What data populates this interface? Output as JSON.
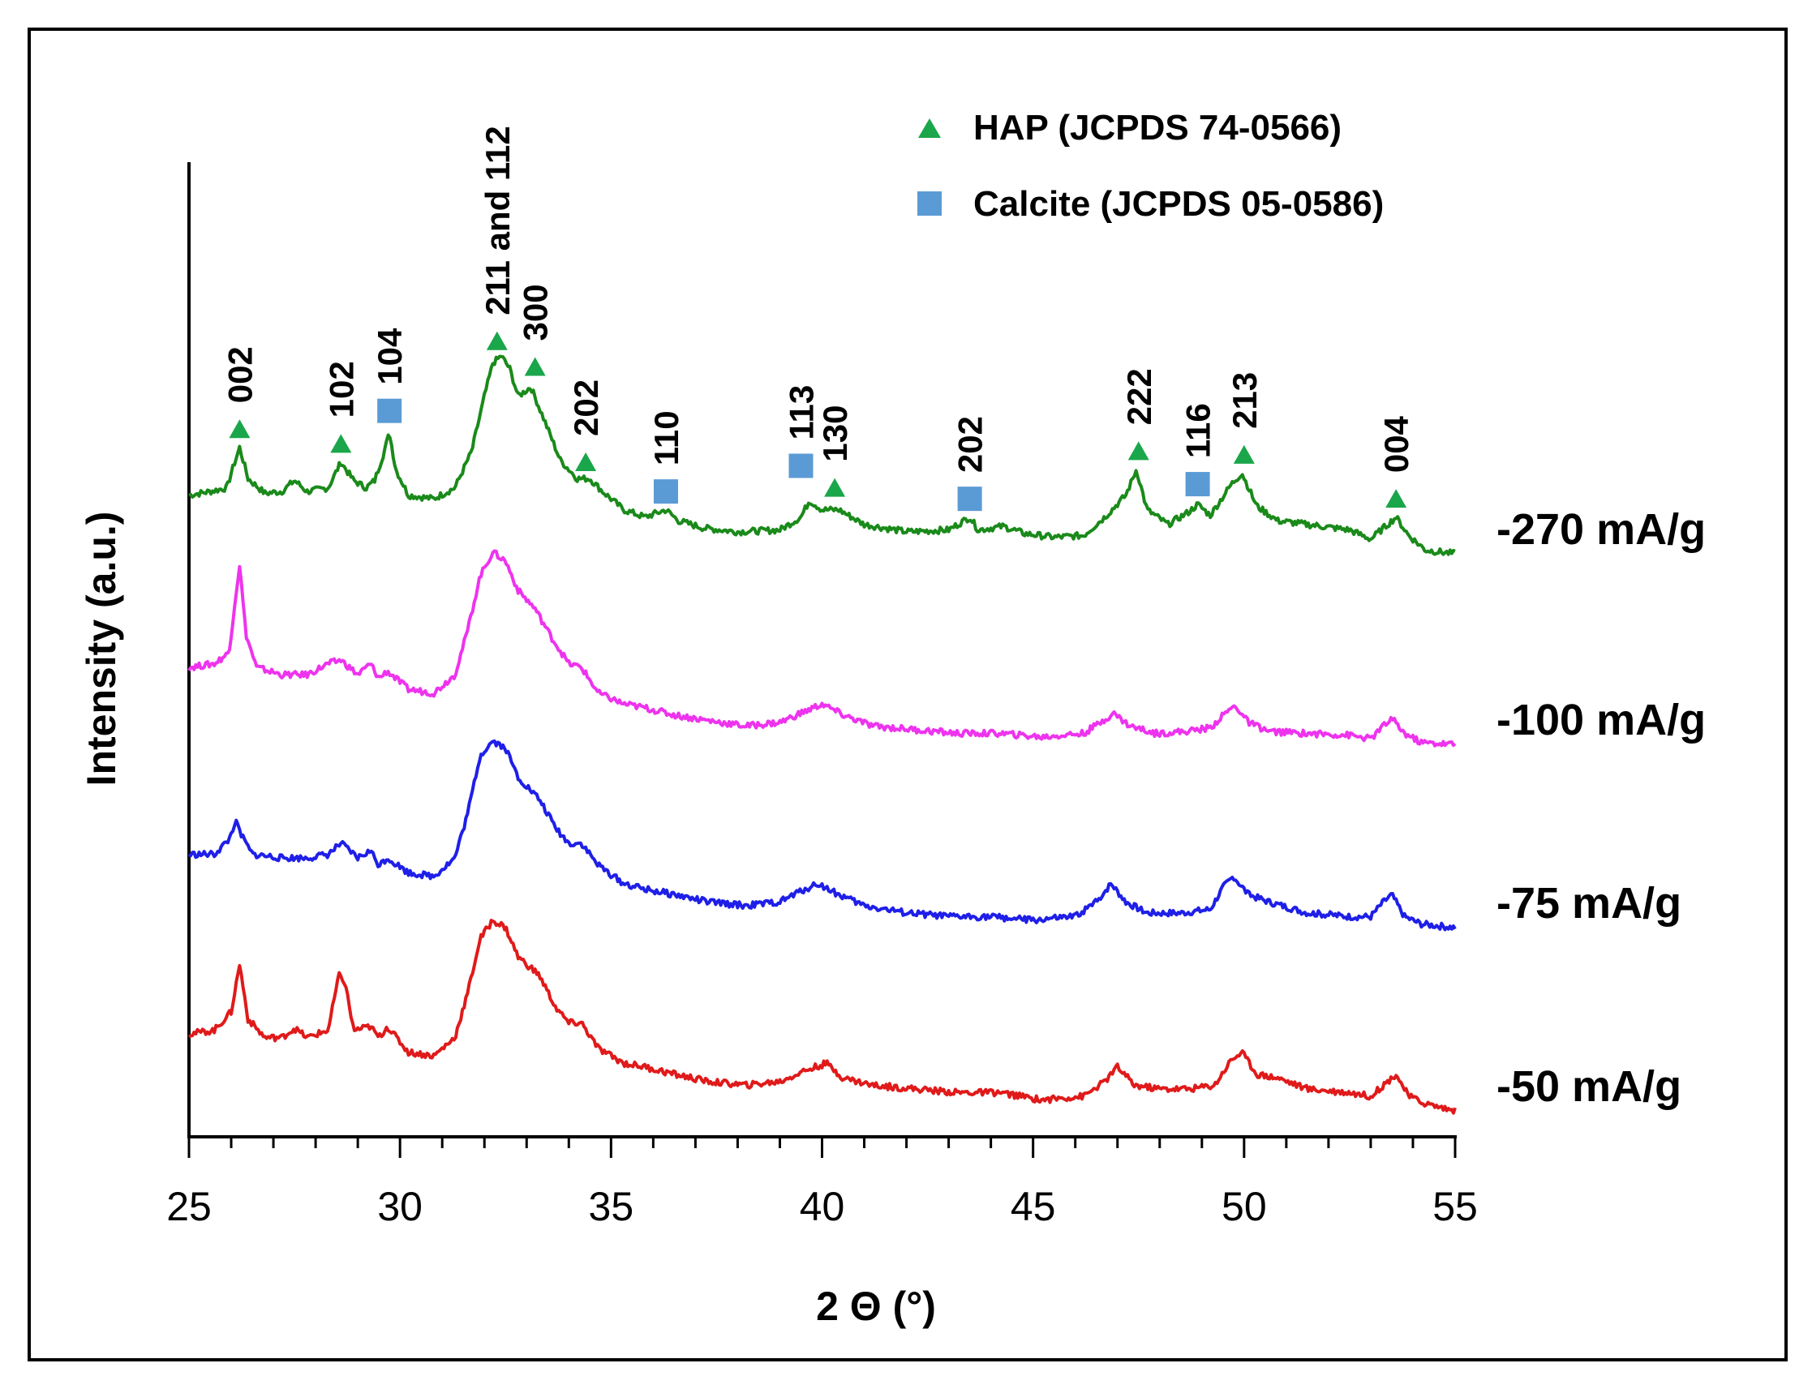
{
  "chart_data": {
    "type": "line",
    "title": "",
    "xlabel": "2 Θ (°)",
    "ylabel": "Intensity (a.u.)",
    "xlim": [
      25,
      55
    ],
    "xticks": [
      "25",
      "30",
      "35",
      "40",
      "45",
      "50",
      "55"
    ],
    "legend": [
      {
        "name": "HAP (JCPDS 74-0566)",
        "marker": "triangle",
        "color": "#1aa64a"
      },
      {
        "name": "Calcite (JCPDS 05-0586)",
        "marker": "square",
        "color": "#5b9bd5"
      }
    ],
    "series": [
      {
        "name": "-270 mA/g",
        "color": "#1a8a1a",
        "offset": 3.0,
        "points": [
          [
            25,
            0.36
          ],
          [
            25.5,
            0.38
          ],
          [
            25.9,
            0.4
          ],
          [
            26.0,
            0.48
          ],
          [
            26.2,
            0.62
          ],
          [
            26.4,
            0.45
          ],
          [
            26.8,
            0.37
          ],
          [
            27.2,
            0.38
          ],
          [
            27.5,
            0.44
          ],
          [
            27.8,
            0.38
          ],
          [
            28.3,
            0.4
          ],
          [
            28.6,
            0.54
          ],
          [
            28.9,
            0.44
          ],
          [
            29.2,
            0.4
          ],
          [
            29.4,
            0.44
          ],
          [
            29.6,
            0.58
          ],
          [
            29.75,
            0.7
          ],
          [
            29.9,
            0.5
          ],
          [
            30.2,
            0.36
          ],
          [
            30.8,
            0.34
          ],
          [
            31.3,
            0.4
          ],
          [
            31.7,
            0.6
          ],
          [
            32.0,
            0.9
          ],
          [
            32.2,
            1.08
          ],
          [
            32.4,
            1.12
          ],
          [
            32.6,
            1.05
          ],
          [
            32.8,
            0.9
          ],
          [
            33.1,
            0.95
          ],
          [
            33.4,
            0.78
          ],
          [
            33.8,
            0.55
          ],
          [
            34.2,
            0.45
          ],
          [
            34.5,
            0.45
          ],
          [
            34.8,
            0.38
          ],
          [
            35.3,
            0.28
          ],
          [
            35.8,
            0.24
          ],
          [
            36.3,
            0.28
          ],
          [
            36.6,
            0.22
          ],
          [
            37.2,
            0.18
          ],
          [
            38.0,
            0.16
          ],
          [
            39.0,
            0.17
          ],
          [
            39.5,
            0.24
          ],
          [
            39.7,
            0.33
          ],
          [
            40.0,
            0.28
          ],
          [
            40.4,
            0.28
          ],
          [
            41.0,
            0.2
          ],
          [
            42.0,
            0.16
          ],
          [
            43.0,
            0.17
          ],
          [
            43.5,
            0.24
          ],
          [
            43.7,
            0.17
          ],
          [
            44.3,
            0.19
          ],
          [
            44.8,
            0.15
          ],
          [
            45.5,
            0.13
          ],
          [
            46.2,
            0.14
          ],
          [
            46.7,
            0.24
          ],
          [
            47.2,
            0.36
          ],
          [
            47.45,
            0.5
          ],
          [
            47.7,
            0.28
          ],
          [
            48.2,
            0.2
          ],
          [
            48.7,
            0.27
          ],
          [
            48.9,
            0.31
          ],
          [
            49.2,
            0.25
          ],
          [
            49.7,
            0.42
          ],
          [
            49.95,
            0.48
          ],
          [
            50.3,
            0.3
          ],
          [
            50.8,
            0.22
          ],
          [
            51.5,
            0.2
          ],
          [
            52.5,
            0.17
          ],
          [
            53.0,
            0.12
          ],
          [
            53.4,
            0.2
          ],
          [
            53.6,
            0.24
          ],
          [
            53.9,
            0.14
          ],
          [
            54.3,
            0.06
          ],
          [
            55,
            0.04
          ]
        ]
      },
      {
        "name": "-100 mA/g",
        "color": "#ee33ee",
        "offset": 2.0,
        "points": [
          [
            25,
            0.42
          ],
          [
            25.6,
            0.44
          ],
          [
            25.95,
            0.5
          ],
          [
            26.1,
            0.8
          ],
          [
            26.2,
            0.98
          ],
          [
            26.35,
            0.6
          ],
          [
            26.6,
            0.42
          ],
          [
            27.2,
            0.38
          ],
          [
            27.8,
            0.38
          ],
          [
            28.3,
            0.44
          ],
          [
            28.6,
            0.46
          ],
          [
            29.0,
            0.38
          ],
          [
            29.3,
            0.44
          ],
          [
            29.5,
            0.36
          ],
          [
            29.7,
            0.4
          ],
          [
            30.2,
            0.3
          ],
          [
            30.8,
            0.28
          ],
          [
            31.3,
            0.38
          ],
          [
            31.6,
            0.62
          ],
          [
            31.9,
            0.92
          ],
          [
            32.2,
            1.05
          ],
          [
            32.5,
            1.0
          ],
          [
            32.8,
            0.84
          ],
          [
            33.2,
            0.74
          ],
          [
            33.6,
            0.58
          ],
          [
            34.0,
            0.44
          ],
          [
            34.3,
            0.42
          ],
          [
            34.7,
            0.28
          ],
          [
            35.3,
            0.22
          ],
          [
            35.8,
            0.2
          ],
          [
            36.5,
            0.16
          ],
          [
            37.3,
            0.13
          ],
          [
            38.2,
            0.1
          ],
          [
            39.0,
            0.12
          ],
          [
            39.5,
            0.17
          ],
          [
            40.0,
            0.22
          ],
          [
            40.5,
            0.16
          ],
          [
            41.2,
            0.1
          ],
          [
            42.2,
            0.08
          ],
          [
            43.2,
            0.06
          ],
          [
            44.2,
            0.06
          ],
          [
            45.2,
            0.04
          ],
          [
            46.2,
            0.06
          ],
          [
            46.6,
            0.12
          ],
          [
            46.9,
            0.17
          ],
          [
            47.3,
            0.1
          ],
          [
            47.9,
            0.06
          ],
          [
            48.6,
            0.07
          ],
          [
            49.2,
            0.09
          ],
          [
            49.6,
            0.18
          ],
          [
            49.8,
            0.21
          ],
          [
            50.1,
            0.12
          ],
          [
            50.6,
            0.07
          ],
          [
            51.5,
            0.06
          ],
          [
            52.5,
            0.05
          ],
          [
            53.0,
            0.03
          ],
          [
            53.3,
            0.1
          ],
          [
            53.5,
            0.14
          ],
          [
            53.8,
            0.06
          ],
          [
            54.2,
            0.01
          ],
          [
            55,
            0.0
          ]
        ]
      },
      {
        "name": "-75 mA/g",
        "color": "#1f1fe8",
        "offset": 1.0,
        "points": [
          [
            25,
            0.4
          ],
          [
            25.6,
            0.4
          ],
          [
            25.95,
            0.48
          ],
          [
            26.1,
            0.58
          ],
          [
            26.25,
            0.5
          ],
          [
            26.5,
            0.4
          ],
          [
            27.2,
            0.38
          ],
          [
            27.8,
            0.38
          ],
          [
            28.3,
            0.4
          ],
          [
            28.6,
            0.46
          ],
          [
            29.0,
            0.38
          ],
          [
            29.3,
            0.42
          ],
          [
            29.5,
            0.34
          ],
          [
            29.7,
            0.38
          ],
          [
            30.2,
            0.3
          ],
          [
            30.8,
            0.28
          ],
          [
            31.3,
            0.38
          ],
          [
            31.6,
            0.62
          ],
          [
            31.9,
            0.94
          ],
          [
            32.2,
            1.02
          ],
          [
            32.5,
            0.98
          ],
          [
            32.8,
            0.82
          ],
          [
            33.3,
            0.7
          ],
          [
            33.7,
            0.54
          ],
          [
            34.0,
            0.46
          ],
          [
            34.3,
            0.46
          ],
          [
            34.7,
            0.34
          ],
          [
            35.3,
            0.24
          ],
          [
            35.8,
            0.21
          ],
          [
            36.5,
            0.18
          ],
          [
            37.3,
            0.14
          ],
          [
            38.2,
            0.12
          ],
          [
            39.0,
            0.14
          ],
          [
            39.5,
            0.2
          ],
          [
            39.9,
            0.24
          ],
          [
            40.4,
            0.18
          ],
          [
            41.0,
            0.12
          ],
          [
            42.0,
            0.08
          ],
          [
            43.0,
            0.06
          ],
          [
            44.0,
            0.06
          ],
          [
            45.0,
            0.04
          ],
          [
            46.0,
            0.06
          ],
          [
            46.5,
            0.14
          ],
          [
            46.85,
            0.24
          ],
          [
            47.2,
            0.14
          ],
          [
            47.7,
            0.08
          ],
          [
            48.5,
            0.08
          ],
          [
            49.2,
            0.1
          ],
          [
            49.5,
            0.22
          ],
          [
            49.75,
            0.28
          ],
          [
            50.1,
            0.18
          ],
          [
            50.6,
            0.14
          ],
          [
            51.5,
            0.08
          ],
          [
            52.5,
            0.06
          ],
          [
            53.0,
            0.06
          ],
          [
            53.3,
            0.14
          ],
          [
            53.5,
            0.18
          ],
          [
            53.8,
            0.06
          ],
          [
            54.2,
            0.02
          ],
          [
            55,
            0.0
          ]
        ]
      },
      {
        "name": "-50 mA/g",
        "color": "#e01a1a",
        "offset": 0.0,
        "points": [
          [
            25,
            0.42
          ],
          [
            25.6,
            0.44
          ],
          [
            26.0,
            0.54
          ],
          [
            26.2,
            0.8
          ],
          [
            26.4,
            0.5
          ],
          [
            26.8,
            0.4
          ],
          [
            27.2,
            0.4
          ],
          [
            27.5,
            0.45
          ],
          [
            27.8,
            0.4
          ],
          [
            28.3,
            0.44
          ],
          [
            28.55,
            0.74
          ],
          [
            28.7,
            0.7
          ],
          [
            28.9,
            0.44
          ],
          [
            29.3,
            0.46
          ],
          [
            29.5,
            0.4
          ],
          [
            29.7,
            0.46
          ],
          [
            30.2,
            0.32
          ],
          [
            30.8,
            0.3
          ],
          [
            31.3,
            0.4
          ],
          [
            31.6,
            0.64
          ],
          [
            31.9,
            0.94
          ],
          [
            32.2,
            1.04
          ],
          [
            32.5,
            1.0
          ],
          [
            32.8,
            0.84
          ],
          [
            33.3,
            0.74
          ],
          [
            33.7,
            0.56
          ],
          [
            34.0,
            0.48
          ],
          [
            34.3,
            0.48
          ],
          [
            34.7,
            0.34
          ],
          [
            35.3,
            0.26
          ],
          [
            35.8,
            0.24
          ],
          [
            36.5,
            0.2
          ],
          [
            37.3,
            0.16
          ],
          [
            38.2,
            0.14
          ],
          [
            39.0,
            0.16
          ],
          [
            39.6,
            0.22
          ],
          [
            40.1,
            0.26
          ],
          [
            40.5,
            0.18
          ],
          [
            41.2,
            0.14
          ],
          [
            42.2,
            0.12
          ],
          [
            43.2,
            0.1
          ],
          [
            44.2,
            0.1
          ],
          [
            45.2,
            0.06
          ],
          [
            46.2,
            0.08
          ],
          [
            46.7,
            0.16
          ],
          [
            47.0,
            0.24
          ],
          [
            47.4,
            0.14
          ],
          [
            48.0,
            0.12
          ],
          [
            48.7,
            0.12
          ],
          [
            49.3,
            0.14
          ],
          [
            49.7,
            0.28
          ],
          [
            49.95,
            0.32
          ],
          [
            50.3,
            0.2
          ],
          [
            50.8,
            0.18
          ],
          [
            51.5,
            0.12
          ],
          [
            52.5,
            0.1
          ],
          [
            53.0,
            0.08
          ],
          [
            53.4,
            0.16
          ],
          [
            53.6,
            0.2
          ],
          [
            53.9,
            0.08
          ],
          [
            54.3,
            0.04
          ],
          [
            55,
            0.0
          ]
        ]
      }
    ],
    "peak_annotations": [
      {
        "label": "002",
        "x": 26.2,
        "phase": "HAP",
        "height": 0.72
      },
      {
        "label": "102",
        "x": 28.6,
        "phase": "HAP",
        "height": 0.64
      },
      {
        "label": "104",
        "x": 29.75,
        "phase": "Calcite",
        "height": 0.82
      },
      {
        "label": "211 and 112",
        "x": 32.3,
        "phase": "HAP",
        "height": 1.2
      },
      {
        "label": "300",
        "x": 33.2,
        "phase": "HAP",
        "height": 1.06
      },
      {
        "label": "202",
        "x": 34.4,
        "phase": "HAP",
        "height": 0.54
      },
      {
        "label": "110",
        "x": 36.3,
        "phase": "Calcite",
        "height": 0.38
      },
      {
        "label": "113",
        "x": 39.5,
        "phase": "Calcite",
        "height": 0.52
      },
      {
        "label": "130",
        "x": 40.3,
        "phase": "HAP",
        "height": 0.4
      },
      {
        "label": "202",
        "x": 43.5,
        "phase": "Calcite",
        "height": 0.34
      },
      {
        "label": "222",
        "x": 47.5,
        "phase": "HAP",
        "height": 0.6
      },
      {
        "label": "116",
        "x": 48.9,
        "phase": "Calcite",
        "height": 0.42
      },
      {
        "label": "213",
        "x": 50.0,
        "phase": "HAP",
        "height": 0.58
      },
      {
        "label": "004",
        "x": 53.6,
        "phase": "HAP",
        "height": 0.34
      }
    ]
  }
}
